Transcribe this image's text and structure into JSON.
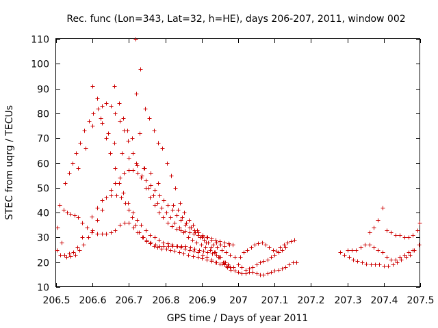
{
  "chart_data": {
    "type": "scatter",
    "title": "Rec. func (Lon=343, Lat=32, h=HE), days 206-207, 2011, window 002",
    "xlabel": "GPS time / Days of year 2011",
    "ylabel": "STEC from uqrg / TECUs",
    "xlim": [
      206.5,
      207.5
    ],
    "ylim": [
      10,
      110
    ],
    "xticks": [
      206.5,
      206.6,
      206.7,
      206.8,
      206.9,
      207,
      207.1,
      207.2,
      207.3,
      207.4,
      207.5
    ],
    "xtick_labels": [
      "206.5",
      "206.6",
      "206.7",
      "206.8",
      "206.9",
      "207",
      "207.1",
      "207.2",
      "207.3",
      "207.4",
      "207.5"
    ],
    "yticks": [
      10,
      20,
      30,
      40,
      50,
      60,
      70,
      80,
      90,
      100,
      110
    ],
    "ytick_labels": [
      "10",
      "20",
      "30",
      "40",
      "50",
      "60",
      "70",
      "80",
      "90",
      "100",
      "110"
    ],
    "grid": false,
    "legend": "none",
    "marker": "plus",
    "color": "#cc0000",
    "series": [
      {
        "x": [
          206.502,
          206.512,
          206.522,
          206.535,
          206.547,
          206.558,
          206.572,
          206.585,
          206.598,
          206.612,
          206.625,
          206.638,
          206.651,
          206.665,
          206.678,
          206.69,
          206.7,
          206.709,
          206.718,
          206.728,
          206.738,
          206.748,
          206.758,
          206.768,
          206.778,
          206.79,
          206.802,
          206.814,
          206.826,
          206.838,
          206.85,
          206.863,
          206.876,
          206.889,
          206.901,
          206.914,
          206.927,
          206.94,
          206.954,
          206.967,
          206.98
        ],
        "y": [
          25,
          23,
          23,
          23.5,
          24,
          26,
          30,
          34,
          38.5,
          42,
          45,
          46,
          47,
          47,
          46,
          44,
          41,
          38,
          35,
          32,
          30,
          28.5,
          27.5,
          26.5,
          26,
          25.5,
          25.5,
          25,
          24.5,
          24,
          23.5,
          23,
          22.5,
          22,
          21.5,
          21,
          20.5,
          20,
          19.5,
          18.5,
          17
        ]
      },
      {
        "x": [
          206.504,
          206.515,
          206.528,
          206.54,
          206.552,
          206.563,
          206.575,
          206.588,
          206.6,
          206.612,
          206.625,
          206.638,
          206.65,
          206.662,
          206.675,
          206.687,
          206.699,
          206.711,
          206.723,
          206.735,
          206.747,
          206.759,
          206.771,
          206.783,
          206.795,
          206.807,
          206.819,
          206.831,
          206.843,
          206.855,
          206.867,
          206.879,
          206.891,
          206.903,
          206.915,
          206.927,
          206.939,
          206.951,
          206.963,
          206.975
        ],
        "y": [
          34,
          28,
          22,
          22.5,
          23,
          25,
          27,
          30,
          33,
          37,
          41,
          46,
          49,
          52,
          54,
          56,
          57,
          57,
          56,
          55,
          53,
          51,
          49,
          47,
          45,
          43,
          41,
          39,
          37,
          35,
          34,
          33,
          32,
          31,
          30,
          29,
          28,
          27,
          26.5,
          27
        ]
      },
      {
        "x": [
          206.51,
          206.52,
          206.53,
          206.54,
          206.55,
          206.56,
          206.572,
          206.585,
          206.598,
          206.612,
          206.625,
          206.638,
          206.65,
          206.662,
          206.675,
          206.688,
          206.7,
          206.712,
          206.724,
          206.736,
          206.748,
          206.76,
          206.772,
          206.784,
          206.796,
          206.808,
          206.82,
          206.832,
          206.844,
          206.856,
          206.868,
          206.88,
          206.892,
          206.904,
          206.916,
          206.928,
          206.94,
          206.952,
          206.965,
          206.977
        ],
        "y": [
          43,
          41,
          40,
          39.5,
          39,
          38,
          36,
          34,
          32,
          31.5,
          31.5,
          31.5,
          32,
          33,
          35,
          36,
          36,
          34,
          32,
          30,
          29,
          28,
          27,
          26.5,
          26.5,
          26.5,
          26.5,
          26.5,
          26.5,
          26.5,
          26,
          25.5,
          25,
          24.5,
          24,
          23.5,
          23,
          22,
          20,
          18
        ]
      },
      {
        "x": [
          206.525,
          206.535,
          206.545,
          206.555,
          206.566,
          206.578,
          206.59,
          206.602,
          206.614,
          206.626,
          206.638,
          206.65,
          206.662,
          206.674,
          206.686,
          206.698,
          206.71,
          206.722,
          206.734,
          206.746,
          206.758,
          206.77,
          206.782,
          206.794,
          206.806,
          206.818,
          206.83,
          206.842,
          206.854,
          206.866,
          206.878,
          206.89,
          206.902,
          206.914,
          206.926,
          206.938,
          206.95,
          206.962,
          206.974,
          206.985
        ],
        "y": [
          52,
          56,
          60,
          64,
          68,
          73,
          77,
          80,
          82,
          83,
          84,
          83,
          80,
          77,
          73,
          69,
          64,
          59,
          54,
          50,
          46,
          43,
          40,
          38,
          36,
          34.5,
          33.5,
          33,
          32.5,
          32,
          31.5,
          31,
          30.5,
          30,
          29.5,
          29,
          28.5,
          28,
          27.5,
          27
        ]
      },
      {
        "x": [
          206.6,
          206.612,
          206.625,
          206.637,
          206.649,
          206.661,
          206.673,
          206.685,
          206.697,
          206.71,
          206.722,
          206.734,
          206.746,
          206.758,
          206.77,
          206.782,
          206.794,
          206.806,
          206.818,
          206.83,
          206.842,
          206.854,
          206.866,
          206.878,
          206.89,
          206.902,
          206.914,
          206.926,
          206.938,
          206.95,
          206.962,
          206.974,
          206.986
        ],
        "y": [
          91,
          86,
          76,
          70,
          64,
          58,
          52,
          48,
          44,
          40,
          37,
          35,
          33,
          31,
          30,
          29,
          28,
          27.5,
          27,
          26.5,
          26,
          25.5,
          25,
          24.5,
          24,
          23,
          22,
          21,
          20,
          19.5,
          19,
          18.5,
          18
        ]
      },
      {
        "x": [
          206.56,
          206.58,
          206.6,
          206.622,
          206.642,
          206.66,
          206.68,
          206.7,
          206.72,
          206.74,
          206.76,
          206.78
        ],
        "y": [
          58,
          66,
          75,
          78,
          72,
          68,
          64,
          62,
          60,
          58,
          56,
          52
        ]
      },
      {
        "x": [
          206.66,
          206.672,
          206.684,
          206.696,
          206.708,
          206.72,
          206.732,
          206.744,
          206.756,
          206.768,
          206.78,
          206.792,
          206.804,
          206.816,
          206.828,
          206.84,
          206.852,
          206.864,
          206.876,
          206.888,
          206.9,
          206.912,
          206.924,
          206.936,
          206.948,
          206.96,
          206.972
        ],
        "y": [
          91,
          84,
          78,
          73,
          70,
          88,
          98,
          82,
          78,
          73,
          68,
          66,
          60,
          55,
          50,
          44,
          40,
          37,
          35,
          33,
          30,
          28,
          26,
          24,
          22,
          20,
          19
        ]
      },
      {
        "x": [
          206.718,
          206.73,
          206.742,
          206.754,
          206.766,
          206.778,
          206.79,
          206.802,
          206.814,
          206.826,
          206.838,
          206.85,
          206.862,
          206.874,
          206.886,
          206.898,
          206.91,
          206.922,
          206.934,
          206.946,
          206.958,
          206.97
        ],
        "y": [
          110,
          72,
          58,
          50,
          47,
          44,
          42,
          40,
          38,
          36,
          34,
          32,
          30,
          29,
          28,
          27,
          26,
          25,
          24,
          22,
          20,
          18
        ]
      },
      {
        "x": [
          206.822,
          206.834,
          206.846,
          206.858,
          206.87,
          206.882,
          206.894,
          206.906,
          206.918,
          206.93,
          206.942,
          206.954,
          206.966,
          206.978,
          206.99
        ],
        "y": [
          43,
          41,
          38,
          36,
          34,
          32,
          30,
          29,
          28,
          27,
          26,
          25,
          24,
          23,
          22
        ]
      },
      {
        "x": [
          206.99,
          207.0,
          207.01,
          207.02,
          207.03,
          207.04,
          207.05,
          207.06,
          207.07,
          207.08,
          207.09,
          207.1,
          207.11,
          207.12,
          207.13,
          207.14,
          207.15,
          207.16
        ],
        "y": [
          16.5,
          16,
          15.5,
          15.5,
          16,
          16,
          15.5,
          15,
          15,
          15.5,
          16,
          16.5,
          17,
          17.5,
          18,
          19,
          20,
          20
        ]
      },
      {
        "x": [
          207.0,
          207.01,
          207.02,
          207.03,
          207.04,
          207.05,
          207.06,
          207.07,
          207.08,
          207.09,
          207.1,
          207.11,
          207.12,
          207.13
        ],
        "y": [
          19,
          18,
          17,
          17.5,
          18,
          19,
          20,
          20.5,
          21,
          22,
          23,
          24,
          25,
          26
        ]
      },
      {
        "x": [
          207.005,
          207.015,
          207.025,
          207.035,
          207.045,
          207.055,
          207.065,
          207.075,
          207.085,
          207.095,
          207.105,
          207.115,
          207.125,
          207.135,
          207.145,
          207.155
        ],
        "y": [
          22,
          24,
          25,
          26,
          27,
          27.5,
          28,
          27,
          26,
          25,
          24.5,
          26,
          27,
          28,
          28.5,
          29
        ]
      },
      {
        "x": [
          207.28,
          207.292,
          207.304,
          207.316,
          207.328,
          207.34,
          207.352,
          207.364,
          207.376,
          207.388,
          207.4,
          207.412,
          207.424,
          207.436,
          207.448,
          207.46,
          207.472,
          207.484,
          207.496
        ],
        "y": [
          24,
          23,
          22,
          21,
          20.5,
          20,
          19.5,
          19,
          19,
          19,
          18.5,
          18.5,
          19,
          20,
          21,
          22,
          23,
          25,
          27
        ]
      },
      {
        "x": [
          207.3,
          207.312,
          207.324,
          207.336,
          207.348,
          207.36,
          207.372,
          207.384,
          207.396,
          207.408,
          207.42,
          207.432,
          207.444,
          207.456,
          207.468,
          207.48
        ],
        "y": [
          25,
          25,
          25,
          26,
          27,
          27,
          26,
          25,
          24,
          22,
          21,
          21,
          22,
          23,
          24,
          25
        ]
      },
      {
        "x": [
          207.36,
          207.372,
          207.384,
          207.396,
          207.408,
          207.42,
          207.432,
          207.444,
          207.456,
          207.468,
          207.48,
          207.492,
          207.498
        ],
        "y": [
          32,
          34,
          37,
          42,
          33,
          32,
          31,
          31,
          30,
          30,
          31,
          33,
          36
        ]
      }
    ]
  }
}
